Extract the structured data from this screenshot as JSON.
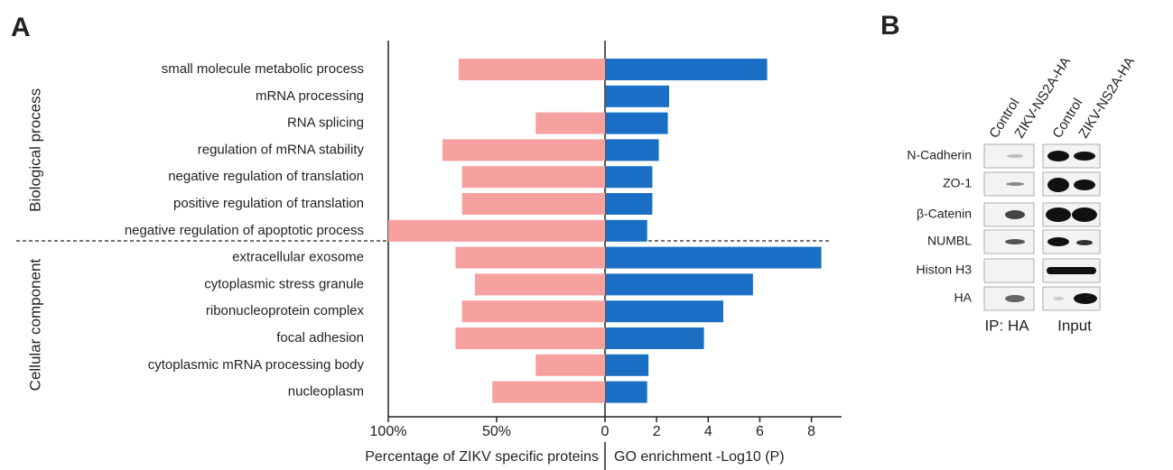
{
  "chart_data": {
    "type": "butterfly",
    "panel_label": "A",
    "groups": [
      {
        "name": "Biological process",
        "categories": [
          "small molecule metabolic process",
          "mRNA processing",
          "RNA splicing",
          "regulation of mRNA stability",
          "negative regulation of translation",
          "positive regulation of translation",
          "negative regulation of apoptotic process"
        ]
      },
      {
        "name": "Cellular component",
        "categories": [
          "extracellular exosome",
          "cytoplasmic stress granule",
          "ribonucleoprotein complex",
          "focal adhesion",
          "cytoplasmic mRNA processing body",
          "nucleoplasm"
        ]
      }
    ],
    "series": [
      {
        "name": "Percentage of ZIKV specific proteins",
        "color": "#f7a0a0",
        "side": "left",
        "xlim": [
          0,
          100
        ],
        "xticks": [
          {
            "value": 100,
            "label": "100%"
          },
          {
            "value": 50,
            "label": "50%"
          }
        ],
        "values": [
          67.5,
          null,
          32,
          75,
          66,
          66,
          100,
          69,
          60,
          66,
          69,
          32,
          52
        ]
      },
      {
        "name": "GO enrichment -Log10 (P)",
        "color": "#1a6fc4",
        "side": "right",
        "xlim": [
          0,
          9.1
        ],
        "xticks": [
          0,
          2,
          4,
          6,
          8
        ],
        "values": [
          6.25,
          2.45,
          2.4,
          2.05,
          1.8,
          1.8,
          1.6,
          8.35,
          5.7,
          4.55,
          3.8,
          1.65,
          1.6
        ]
      }
    ]
  },
  "blot": {
    "panel_label": "B",
    "lanes": [
      "Control",
      "ZIKV-NS2A-HA",
      "Control",
      "ZIKV-NS2A-HA"
    ],
    "rows": [
      "N-Cadherin",
      "ZO-1",
      "β-Catenin",
      "NUMBL",
      "Histon H3",
      "HA"
    ],
    "sections": [
      "IP: HA",
      "Input"
    ]
  }
}
